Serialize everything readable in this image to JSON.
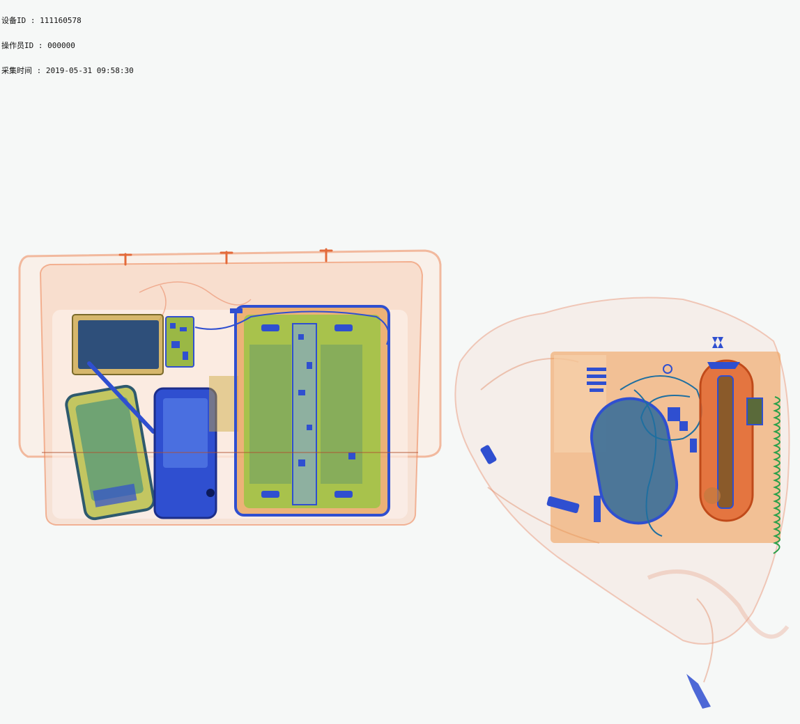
{
  "header": {
    "device_id_label": "设备ID",
    "device_id_value": "111160578",
    "operator_id_label": "操作员ID",
    "operator_id_value": "000000",
    "capture_time_label": "采集时间",
    "capture_time_value": "2019-05-31 09:58:30",
    "separator": " : "
  },
  "image": {
    "type": "xray-baggage-scan",
    "objects": [
      "tray-with-phones-and-tablet",
      "backpack-with-cables-and-gadgets"
    ]
  },
  "colors": {
    "background": "#f6f8f7",
    "organic": "#e8764a",
    "mixed": "#9bb84a",
    "metal": "#2f4fd0",
    "battery": "#2e5a8a"
  }
}
